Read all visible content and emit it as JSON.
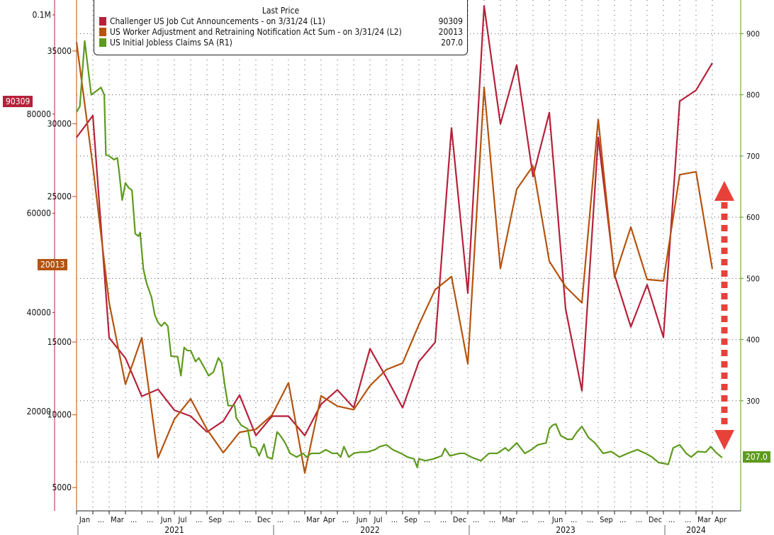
{
  "legend": {
    "title": "Last Price",
    "items": [
      {
        "label": "Challenger US Job Cut Announcements -  on 3/31/24  (L1)",
        "value": "90309",
        "color": "#b5213a"
      },
      {
        "label": "US Worker Adjustment and Retraining Notification Act Sum -  on 3/31/24  (L2)",
        "value": "20013",
        "color": "#b5530f"
      },
      {
        "label": "US Initial Jobless Claims SA  (R1)",
        "value": "207.0",
        "color": "#5e9a1e"
      }
    ]
  },
  "badges": {
    "l1": "90309",
    "l2": "20013",
    "r1": "207.0"
  },
  "chart_data": {
    "type": "line",
    "x_unit": "months since Jan 2021",
    "month_labels": [
      "Jan",
      "...",
      "Mar",
      "...",
      "...",
      "Jun",
      "Jul",
      "...",
      "Sep",
      "...",
      "...",
      "Dec",
      "...",
      "...",
      "Mar",
      "Apr",
      "...",
      "Jun",
      "Jul",
      "...",
      "Sep",
      "...",
      "...",
      "Dec",
      "...",
      "...",
      "Mar",
      "...",
      "...",
      "Jun",
      "...",
      "...",
      "Sep",
      "...",
      "...",
      "Dec",
      "...",
      "...",
      "Mar",
      "Apr"
    ],
    "year_labels": [
      {
        "label": "2021",
        "start": 0,
        "end": 12
      },
      {
        "label": "2022",
        "start": 12,
        "end": 24
      },
      {
        "label": "2023",
        "start": 24,
        "end": 36
      },
      {
        "label": "2024",
        "start": 36,
        "end": 40
      }
    ],
    "axes": {
      "L1": {
        "min": 0,
        "max": 103000,
        "ticks": [
          {
            "v": 100000,
            "label": "0.1M"
          },
          {
            "v": 80000,
            "label": "80000"
          },
          {
            "v": 60000,
            "label": "60000"
          },
          {
            "v": 40000,
            "label": "40000"
          },
          {
            "v": 20000,
            "label": "20000"
          }
        ]
      },
      "L2": {
        "min": 3400,
        "max": 38500,
        "ticks": [
          {
            "v": 35000,
            "label": "35000"
          },
          {
            "v": 30000,
            "label": "30000"
          },
          {
            "v": 25000,
            "label": "25000"
          },
          {
            "v": 15000,
            "label": "15000"
          },
          {
            "v": 10000,
            "label": "10000"
          },
          {
            "v": 5000,
            "label": "5000"
          }
        ]
      },
      "R1": {
        "min": 120,
        "max": 955,
        "ticks": [
          {
            "v": 900,
            "label": "900"
          },
          {
            "v": 800,
            "label": "800"
          },
          {
            "v": 700,
            "label": "700"
          },
          {
            "v": 600,
            "label": "600"
          },
          {
            "v": 500,
            "label": "500"
          },
          {
            "v": 400,
            "label": "400"
          },
          {
            "v": 300,
            "label": "300"
          }
        ]
      }
    },
    "series": [
      {
        "name": "Challenger US Job Cut Announcements",
        "axis": "L1",
        "color": "#b5213a",
        "values": [
          75300,
          79700,
          34900,
          30800,
          23100,
          24500,
          20300,
          19100,
          15900,
          18100,
          23350,
          15200,
          19100,
          19100,
          15200,
          21500,
          24400,
          20800,
          32700,
          26900,
          20800,
          30100,
          34000,
          77200,
          43900,
          101800,
          78000,
          89900,
          67400,
          80300,
          40700,
          24200,
          75300,
          47600,
          37100,
          45600,
          35000,
          82600,
          84800,
          90309
        ]
      },
      {
        "name": "US Worker Adjustment and Retraining Notification Act Sum",
        "axis": "L2",
        "color": "#b5530f",
        "values": [
          35600,
          27100,
          17700,
          12100,
          15300,
          7050,
          9700,
          11100,
          9000,
          7400,
          8800,
          9000,
          10000,
          12200,
          6000,
          11300,
          10600,
          10350,
          12000,
          13100,
          13550,
          16200,
          18600,
          19500,
          13500,
          32500,
          20050,
          25500,
          27100,
          20550,
          18800,
          17700,
          30300,
          19450,
          22900,
          19300,
          19200,
          26500,
          26700,
          20013
        ]
      },
      {
        "name": "US Initial Jobless Claims SA",
        "axis": "R1",
        "color": "#5e9a1e",
        "points": [
          [
            0,
            772
          ],
          [
            0.2,
            781
          ],
          [
            0.5,
            888
          ],
          [
            0.9,
            800
          ],
          [
            1.2,
            806
          ],
          [
            1.5,
            812
          ],
          [
            1.7,
            800
          ],
          [
            1.8,
            702
          ],
          [
            2.0,
            700
          ],
          [
            2.3,
            694
          ],
          [
            2.5,
            697
          ],
          [
            2.6,
            677
          ],
          [
            2.8,
            628
          ],
          [
            3.0,
            656
          ],
          [
            3.2,
            648
          ],
          [
            3.4,
            644
          ],
          [
            3.6,
            573
          ],
          [
            3.8,
            569
          ],
          [
            3.9,
            575
          ],
          [
            4.1,
            515
          ],
          [
            4.3,
            492
          ],
          [
            4.6,
            469
          ],
          [
            4.8,
            440
          ],
          [
            5.0,
            428
          ],
          [
            5.2,
            422
          ],
          [
            5.4,
            428
          ],
          [
            5.6,
            422
          ],
          [
            5.8,
            373
          ],
          [
            6.2,
            372
          ],
          [
            6.4,
            341
          ],
          [
            6.6,
            387
          ],
          [
            6.8,
            382
          ],
          [
            7.0,
            382
          ],
          [
            7.3,
            364
          ],
          [
            7.5,
            370
          ],
          [
            7.8,
            356
          ],
          [
            8.1,
            341
          ],
          [
            8.4,
            347
          ],
          [
            8.7,
            370
          ],
          [
            8.9,
            362
          ],
          [
            9.1,
            324
          ],
          [
            9.3,
            292
          ],
          [
            9.7,
            292
          ],
          [
            9.8,
            272
          ],
          [
            10.1,
            260
          ],
          [
            10.5,
            254
          ],
          [
            10.7,
            225
          ],
          [
            11.0,
            223
          ],
          [
            11.2,
            210
          ],
          [
            11.5,
            229
          ],
          [
            11.7,
            208
          ],
          [
            12.0,
            205
          ],
          [
            12.3,
            249
          ],
          [
            12.5,
            243
          ],
          [
            12.8,
            231
          ],
          [
            13.1,
            214
          ],
          [
            13.5,
            208
          ],
          [
            13.9,
            214
          ],
          [
            14.1,
            208
          ],
          [
            14.4,
            214
          ],
          [
            14.9,
            214
          ],
          [
            15.3,
            220
          ],
          [
            15.7,
            214
          ],
          [
            16.0,
            214
          ],
          [
            16.2,
            208
          ],
          [
            16.4,
            225
          ],
          [
            16.7,
            208
          ],
          [
            17.0,
            214
          ],
          [
            17.4,
            216
          ],
          [
            17.8,
            216
          ],
          [
            18.3,
            220
          ],
          [
            18.6,
            225
          ],
          [
            19.0,
            228
          ],
          [
            19.4,
            220
          ],
          [
            19.9,
            214
          ],
          [
            20.3,
            208
          ],
          [
            20.7,
            205
          ],
          [
            20.9,
            191
          ],
          [
            21.0,
            205
          ],
          [
            21.4,
            202
          ],
          [
            21.9,
            205
          ],
          [
            22.4,
            210
          ],
          [
            22.6,
            222
          ],
          [
            22.9,
            210
          ],
          [
            23.5,
            214
          ],
          [
            23.8,
            214
          ],
          [
            24.2,
            208
          ],
          [
            24.8,
            202
          ],
          [
            25.3,
            214
          ],
          [
            25.8,
            214
          ],
          [
            26.3,
            223
          ],
          [
            26.5,
            218
          ],
          [
            27.0,
            231
          ],
          [
            27.5,
            214
          ],
          [
            27.9,
            220
          ],
          [
            28.3,
            228
          ],
          [
            28.8,
            231
          ],
          [
            29.0,
            254
          ],
          [
            29.2,
            260
          ],
          [
            29.4,
            262
          ],
          [
            29.7,
            243
          ],
          [
            30.1,
            237
          ],
          [
            30.4,
            237
          ],
          [
            30.7,
            249
          ],
          [
            31.0,
            258
          ],
          [
            31.4,
            240
          ],
          [
            31.8,
            231
          ],
          [
            32.3,
            214
          ],
          [
            32.8,
            217
          ],
          [
            33.3,
            208
          ],
          [
            33.8,
            214
          ],
          [
            34.4,
            220
          ],
          [
            34.9,
            214
          ],
          [
            35.3,
            208
          ],
          [
            35.7,
            199
          ],
          [
            36.3,
            196
          ],
          [
            36.6,
            223
          ],
          [
            37.0,
            228
          ],
          [
            37.4,
            214
          ],
          [
            37.7,
            208
          ],
          [
            38.1,
            217
          ],
          [
            38.6,
            216
          ],
          [
            38.9,
            225
          ],
          [
            39.2,
            216
          ],
          [
            39.6,
            207
          ]
        ]
      }
    ]
  }
}
